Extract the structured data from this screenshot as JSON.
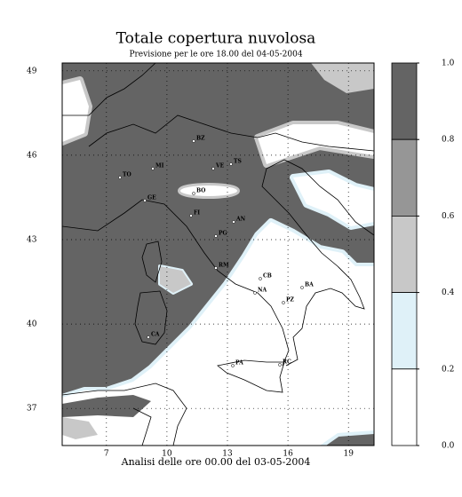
{
  "header": {
    "title": "Totale copertura nuvolosa",
    "subtitle": "Previsione per le ore 18.00 del 04-05-2004"
  },
  "footer": "Analisi delle ore 00.00 del 03-05-2004",
  "map": {
    "lat_ticks": [
      49,
      46,
      43,
      40,
      37
    ],
    "lon_ticks": [
      7,
      10,
      13,
      16,
      19
    ],
    "cities": [
      "BZ",
      "TS",
      "VE",
      "TO",
      "MI",
      "BO",
      "GE",
      "FI",
      "AN",
      "PG",
      "RM",
      "CB",
      "BA",
      "NA",
      "PZ",
      "CA",
      "PA",
      "RC"
    ]
  },
  "colorbar": {
    "ticks": [
      {
        "value": 1,
        "label": "1.0"
      },
      0.8,
      0.6,
      0.4,
      0.2,
      {
        "value": 0,
        "label": "0.0"
      }
    ],
    "colors": [
      "#646464",
      "#969696",
      "#c8c8c8",
      "#dff1f8",
      "#ffffff"
    ]
  }
}
